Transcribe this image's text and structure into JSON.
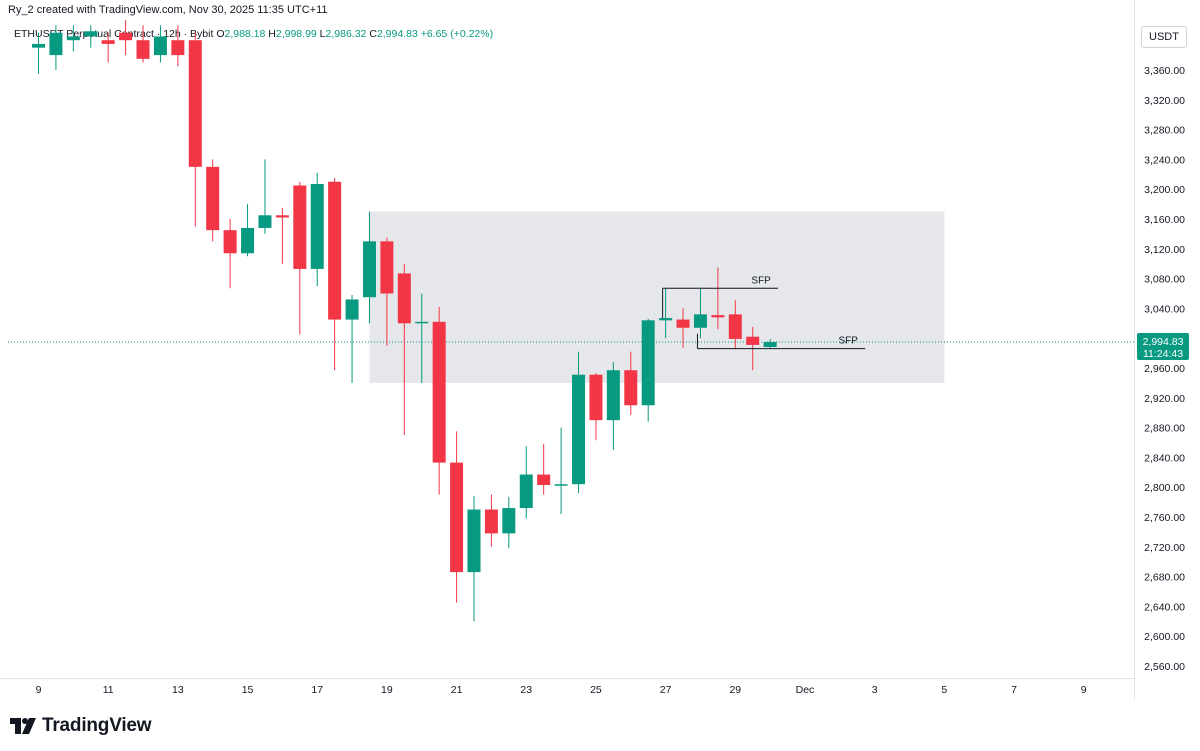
{
  "header": {
    "created_by": "Ry_2 created with TradingView.com, Nov 30, 2025 11:35 UTC+11"
  },
  "legend": {
    "symbol": "ETHUSDT Perpetual Contract · 12h · Bybit",
    "open_label": "O",
    "open": "2,988.18",
    "high_label": "H",
    "high": "2,998.99",
    "low_label": "L",
    "low": "2,986.32",
    "close_label": "C",
    "close": "2,994.83",
    "change": "+6.65 (+0.22%)"
  },
  "currency": "USDT",
  "brand": {
    "name": "TradingView"
  },
  "colors": {
    "up": "#089981",
    "down": "#f23645",
    "zone": "#e0e3e6",
    "price_line": "#089981"
  },
  "chart_data": {
    "type": "candlestick",
    "interval": "12h",
    "ylim": [
      2530,
      3400
    ],
    "y_ticks": [
      "3,360.00",
      "3,320.00",
      "3,280.00",
      "3,240.00",
      "3,200.00",
      "3,160.00",
      "3,120.00",
      "3,080.00",
      "3,040.00",
      "3,000.00",
      "2,960.00",
      "2,920.00",
      "2,880.00",
      "2,840.00",
      "2,800.00",
      "2,760.00",
      "2,720.00",
      "2,680.00",
      "2,640.00",
      "2,600.00",
      "2,560.00"
    ],
    "x_ticks": [
      {
        "label": "9",
        "bar": 0
      },
      {
        "label": "11",
        "bar": 4
      },
      {
        "label": "13",
        "bar": 8
      },
      {
        "label": "15",
        "bar": 12
      },
      {
        "label": "17",
        "bar": 16
      },
      {
        "label": "19",
        "bar": 20
      },
      {
        "label": "21",
        "bar": 24
      },
      {
        "label": "23",
        "bar": 28
      },
      {
        "label": "25",
        "bar": 32
      },
      {
        "label": "27",
        "bar": 36
      },
      {
        "label": "29",
        "bar": 40
      },
      {
        "label": "Dec",
        "bar": 44
      },
      {
        "label": "3",
        "bar": 48
      },
      {
        "label": "5",
        "bar": 52
      },
      {
        "label": "7",
        "bar": 56
      },
      {
        "label": "9",
        "bar": 60
      }
    ],
    "candles": [
      {
        "o": 3390,
        "h": 3410,
        "l": 3355,
        "c": 3395
      },
      {
        "o": 3380,
        "h": 3420,
        "l": 3360,
        "c": 3410
      },
      {
        "o": 3400,
        "h": 3420,
        "l": 3385,
        "c": 3405
      },
      {
        "o": 3405,
        "h": 3420,
        "l": 3390,
        "c": 3412
      },
      {
        "o": 3400,
        "h": 3410,
        "l": 3370,
        "c": 3395
      },
      {
        "o": 3410,
        "h": 3430,
        "l": 3380,
        "c": 3400
      },
      {
        "o": 3400,
        "h": 3420,
        "l": 3370,
        "c": 3375
      },
      {
        "o": 3380,
        "h": 3420,
        "l": 3370,
        "c": 3405
      },
      {
        "o": 3400,
        "h": 3420,
        "l": 3365,
        "c": 3380
      },
      {
        "o": 3400,
        "h": 3410,
        "l": 3150,
        "c": 3230
      },
      {
        "o": 3230,
        "h": 3240,
        "l": 3130,
        "c": 3145
      },
      {
        "o": 3145,
        "h": 3160,
        "l": 3067,
        "c": 3114
      },
      {
        "o": 3114,
        "h": 3180,
        "l": 3110,
        "c": 3148
      },
      {
        "o": 3148,
        "h": 3240,
        "l": 3140,
        "c": 3165
      },
      {
        "o": 3165,
        "h": 3175,
        "l": 3100,
        "c": 3162
      },
      {
        "o": 3205,
        "h": 3210,
        "l": 3005,
        "c": 3093
      },
      {
        "o": 3093,
        "h": 3222,
        "l": 3070,
        "c": 3207
      },
      {
        "o": 3210,
        "h": 3215,
        "l": 2957,
        "c": 3025
      },
      {
        "o": 3025,
        "h": 3058,
        "l": 2940,
        "c": 3052
      },
      {
        "o": 3055,
        "h": 3170,
        "l": 3020,
        "c": 3130
      },
      {
        "o": 3130,
        "h": 3135,
        "l": 2990,
        "c": 3060
      },
      {
        "o": 3087,
        "h": 3100,
        "l": 2870,
        "c": 3020
      },
      {
        "o": 3020,
        "h": 3060,
        "l": 2940,
        "c": 3022
      },
      {
        "o": 3022,
        "h": 3042,
        "l": 2790,
        "c": 2833
      },
      {
        "o": 2833,
        "h": 2875,
        "l": 2645,
        "c": 2686
      },
      {
        "o": 2686,
        "h": 2788,
        "l": 2620,
        "c": 2770
      },
      {
        "o": 2770,
        "h": 2790,
        "l": 2720,
        "c": 2738
      },
      {
        "o": 2738,
        "h": 2787,
        "l": 2718,
        "c": 2772
      },
      {
        "o": 2772,
        "h": 2855,
        "l": 2758,
        "c": 2817
      },
      {
        "o": 2817,
        "h": 2858,
        "l": 2790,
        "c": 2803
      },
      {
        "o": 2803,
        "h": 2880,
        "l": 2764,
        "c": 2804
      },
      {
        "o": 2804,
        "h": 2982,
        "l": 2792,
        "c": 2951
      },
      {
        "o": 2951,
        "h": 2953,
        "l": 2863,
        "c": 2890
      },
      {
        "o": 2890,
        "h": 2968,
        "l": 2850,
        "c": 2957
      },
      {
        "o": 2957,
        "h": 2982,
        "l": 2897,
        "c": 2910
      },
      {
        "o": 2910,
        "h": 3026,
        "l": 2888,
        "c": 3024
      },
      {
        "o": 3024,
        "h": 3067,
        "l": 3000,
        "c": 3027
      },
      {
        "o": 3025,
        "h": 3040,
        "l": 2987,
        "c": 3014
      },
      {
        "o": 3014,
        "h": 3068,
        "l": 3000,
        "c": 3032
      },
      {
        "o": 3031,
        "h": 3095,
        "l": 3012,
        "c": 3028
      },
      {
        "o": 3032,
        "h": 3051,
        "l": 2985,
        "c": 2999
      },
      {
        "o": 3002,
        "h": 3015,
        "l": 2957,
        "c": 2991
      },
      {
        "o": 2988.18,
        "h": 2998.99,
        "l": 2986.32,
        "c": 2994.83
      }
    ],
    "zone": {
      "x_start_bar": 19,
      "x_end_bar": 52,
      "y_top": 3170,
      "y_bottom": 2940
    },
    "annotations": [
      {
        "text": "SFP",
        "y": 3067,
        "x_start_bar": 36,
        "x_end_bar": 42
      },
      {
        "text": "SFP",
        "y": 2986,
        "x_start_bar": 38,
        "x_end_bar": 47
      }
    ],
    "last_price": "2,994.83",
    "last_price_value": 2994.83,
    "countdown": "11:24:43"
  }
}
